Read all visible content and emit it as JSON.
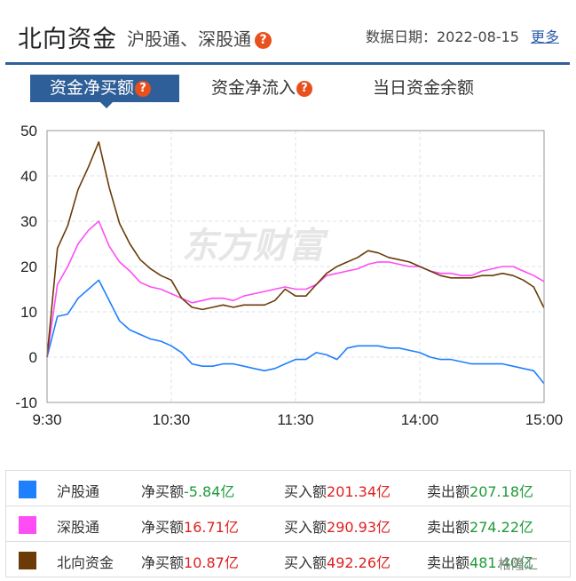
{
  "header": {
    "title": "北向资金",
    "subtitle": "沪股通、深股通",
    "help_glyph": "?",
    "date_label": "数据日期：2022-08-15",
    "more_label": "更多"
  },
  "tabs": [
    {
      "label": "资金净买额",
      "active": true,
      "has_help": true
    },
    {
      "label": "资金净流入",
      "active": false,
      "has_help": true
    },
    {
      "label": "当日资金余额",
      "active": false,
      "has_help": false
    }
  ],
  "watermark": "东方财富",
  "colors": {
    "accent": "#2f5f98",
    "hgt": "#1e7fff",
    "sgt": "#ff4df6",
    "north": "#6b3a07",
    "help": "#e8501d",
    "up": "#e02020",
    "down": "#1e9a3a"
  },
  "chart_data": {
    "type": "line",
    "title": "",
    "xlabel": "",
    "ylabel": "",
    "x_ticks": [
      "9:30",
      "10:30",
      "11:30",
      "14:00",
      "15:00"
    ],
    "y_ticks": [
      50,
      40,
      30,
      20,
      10,
      0,
      -10
    ],
    "ylim": [
      -10,
      50
    ],
    "grid": true,
    "time_points": [
      "9:30",
      "9:35",
      "9:40",
      "9:45",
      "9:50",
      "9:55",
      "10:00",
      "10:05",
      "10:10",
      "10:15",
      "10:20",
      "10:25",
      "10:30",
      "10:35",
      "10:40",
      "10:45",
      "10:50",
      "10:55",
      "11:00",
      "11:05",
      "11:10",
      "11:15",
      "11:20",
      "11:25",
      "11:30/13:00",
      "13:05",
      "13:10",
      "13:15",
      "13:20",
      "13:25",
      "13:30",
      "13:35",
      "13:40",
      "13:45",
      "13:50",
      "13:55",
      "14:00",
      "14:05",
      "14:10",
      "14:15",
      "14:20",
      "14:25",
      "14:30",
      "14:35",
      "14:40",
      "14:45",
      "14:50",
      "14:55",
      "15:00"
    ],
    "series": [
      {
        "name": "沪股通",
        "color": "#1e7fff",
        "values": [
          0,
          9,
          9.5,
          13,
          15,
          17,
          12.5,
          8,
          6,
          5,
          4,
          3.5,
          2.5,
          1,
          -1.5,
          -2,
          -2,
          -1.5,
          -1.5,
          -2,
          -2.5,
          -3,
          -2.5,
          -1.5,
          -0.5,
          -0.5,
          1,
          0.5,
          -0.5,
          2,
          2.5,
          2.5,
          2.5,
          2,
          2,
          1.5,
          1,
          0,
          -0.5,
          -0.5,
          -1,
          -1.5,
          -1.5,
          -1.5,
          -1.5,
          -2,
          -2.5,
          -3,
          -5.84
        ]
      },
      {
        "name": "深股通",
        "color": "#ff4df6",
        "values": [
          0,
          16,
          20,
          25,
          28,
          30,
          24.5,
          21,
          19,
          16.5,
          15.5,
          15,
          14,
          13,
          12,
          12.5,
          13,
          13,
          12.5,
          13.5,
          14,
          14.5,
          15,
          15.5,
          15,
          15,
          16,
          18,
          18.5,
          19,
          19.5,
          20.5,
          21,
          21,
          20.5,
          20,
          20,
          19,
          18.5,
          18.5,
          18,
          18,
          19,
          19.5,
          20,
          20,
          19,
          18,
          16.71
        ]
      },
      {
        "name": "北向资金",
        "color": "#6b3a07",
        "values": [
          0,
          24,
          29,
          37,
          42,
          47.5,
          37.5,
          29.5,
          25,
          21.5,
          19.5,
          18,
          17,
          13,
          11,
          10.5,
          11,
          11.5,
          11,
          11.5,
          11.5,
          11.5,
          12.5,
          15,
          13.5,
          13.5,
          16,
          18.5,
          20,
          21,
          22,
          23.5,
          23,
          22,
          21.5,
          21,
          20,
          19,
          18,
          17.5,
          17.5,
          17.5,
          18,
          18,
          18.5,
          18,
          17,
          15.5,
          10.87
        ]
      }
    ]
  },
  "legend": {
    "net_label": "净买额",
    "buy_label": "买入额",
    "sell_label": "卖出额",
    "rows": [
      {
        "name": "沪股通",
        "swatch": "#1e7fff",
        "net": "-5.84亿",
        "buy": "201.34亿",
        "sell": "207.18亿",
        "net_color": "down"
      },
      {
        "name": "深股通",
        "swatch": "#ff4df6",
        "net": "16.71亿",
        "buy": "290.93亿",
        "sell": "274.22亿",
        "net_color": "up"
      },
      {
        "name": "北向资金",
        "swatch": "#6b3a07",
        "net": "10.87亿",
        "buy": "492.26亿",
        "sell": "481.40亿",
        "net_color": "up"
      }
    ]
  },
  "corner_logo": "格隆汇"
}
